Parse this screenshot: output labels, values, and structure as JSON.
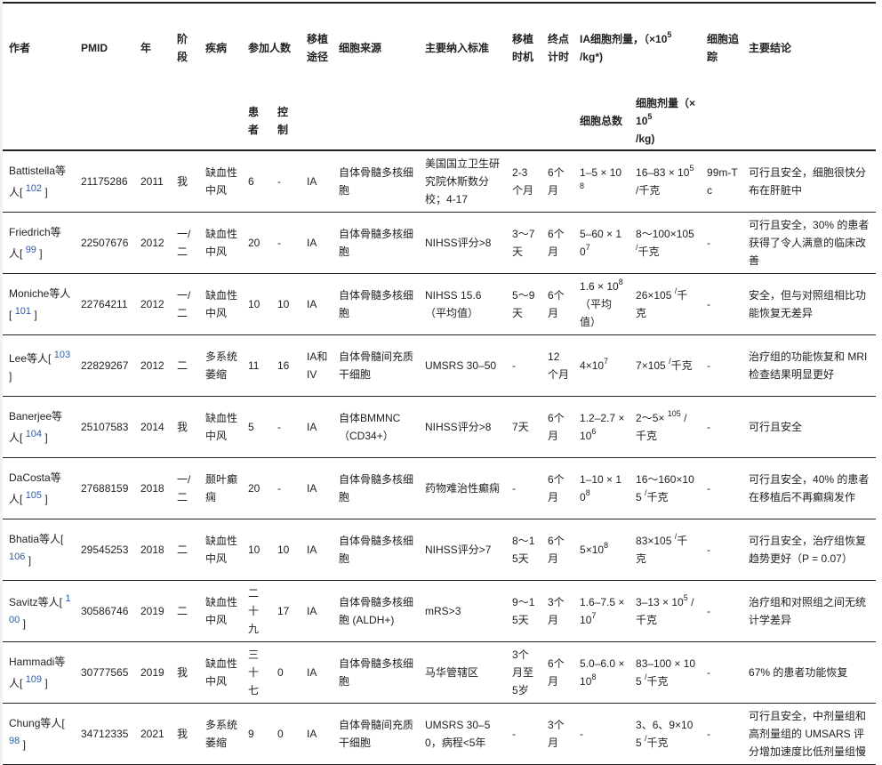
{
  "header": {
    "author": "作者",
    "pmid": "PMID",
    "year": "年",
    "phase": "阶段",
    "disease": "疾病",
    "enrolled": "参加人数",
    "patients": "患者",
    "control": "控制",
    "route": "移植途径",
    "cell_source": "细胞来源",
    "inclusion": "主要纳入标准",
    "timing": "移植时机",
    "endpoint": "终点计时",
    "ia_dose": "IA细胞剂量，（×10",
    "ia_dose_sup": "5",
    "ia_dose_after": "/kg*)",
    "total_cells": "细胞总数",
    "dose": "细胞剂量（×10",
    "dose_sup": "5",
    "dose_after": "/kg)",
    "tracking": "细胞追踪",
    "conclusion": "主要结论"
  },
  "colors": {
    "ref_link": "#2a5db0",
    "rule": "#222222"
  },
  "rows": [
    {
      "author": "Battistella等人[",
      "ref": "102",
      "pmid": "21175286",
      "year": "2011",
      "phase": "我",
      "disease": "缺血性中风",
      "patients": "6",
      "control": "-",
      "route": "IA",
      "source": "自体骨髓多核细胞",
      "inclusion": "美国国立卫生研究院休斯数分校；4-17",
      "timing": "2-3个月",
      "endpoint": "6个月",
      "total": {
        "base": "1–5 × 10",
        "sup": "8",
        "after": ""
      },
      "dose": {
        "base": "16–83 × 10",
        "sup": "5",
        "after": " /千克"
      },
      "tracking": "99m-Tc",
      "conclusion": "可行且安全，细胞很快分布在肝脏中"
    },
    {
      "author": "Friedrich等人[",
      "ref": "99",
      "pmid": "22507676",
      "year": "2012",
      "phase": "一/二",
      "disease": "缺血性中风",
      "patients": "20",
      "control": "-",
      "route": "IA",
      "source": "自体骨髓多核细胞",
      "inclusion": "NIHSS评分>8",
      "timing": "3～7天",
      "endpoint": "6个月",
      "total": {
        "base": "5–60 × 10",
        "sup": "7",
        "after": ""
      },
      "dose": {
        "base": "8～100×105 ",
        "sup": "/",
        "after": "千克"
      },
      "tracking": "-",
      "conclusion": "可行且安全，30% 的患者获得了令人满意的临床改善"
    },
    {
      "author": "Moniche等人[",
      "ref": "101",
      "pmid": "22764211",
      "year": "2012",
      "phase": "一/二",
      "disease": "缺血性中风",
      "patients": "10",
      "control": "10",
      "route": "IA",
      "source": "自体骨髓多核细胞",
      "inclusion": "NIHSS 15.6（平均值）",
      "timing": "5～9天",
      "endpoint": "6个月",
      "total": {
        "base": "1.6 × 10",
        "sup": "8",
        "after": "（平均值）"
      },
      "dose": {
        "base": "26×105 ",
        "sup": "/",
        "after": "千克"
      },
      "tracking": "-",
      "conclusion": "安全，但与对照组相比功能恢复无差异"
    },
    {
      "author": "Lee等人[",
      "ref": "103",
      "pmid": "22829267",
      "year": "2012",
      "phase": "二",
      "disease": "多系统萎缩",
      "patients": "11",
      "control": "16",
      "route": "IA和IV",
      "source": "自体骨髓间充质干细胞",
      "inclusion": "UMSRS 30–50",
      "timing": "-",
      "endpoint": "12个月",
      "total": {
        "base": "4×10",
        "sup": "7",
        "after": ""
      },
      "dose": {
        "base": "7×105 ",
        "sup": "/",
        "after": "千克"
      },
      "tracking": "-",
      "conclusion": "治疗组的功能恢复和 MRI 检查结果明显更好"
    },
    {
      "author": "Banerjee等人[",
      "ref": "104",
      "pmid": "25107583",
      "year": "2014",
      "phase": "我",
      "disease": "缺血性中风",
      "patients": "5",
      "control": "-",
      "route": "IA",
      "source": "自体BMMNC（CD34+）",
      "inclusion": "NIHSS评分>8",
      "timing": "7天",
      "endpoint": "6个月",
      "total": {
        "base": "1.2–2.7 × 10",
        "sup": "6",
        "after": ""
      },
      "dose": {
        "base": "2～5× ",
        "sup": "105",
        "after": " /千克"
      },
      "tracking": "-",
      "conclusion": "可行且安全"
    },
    {
      "author": "DaCosta等人[",
      "ref": "105",
      "pmid": "27688159",
      "year": "2018",
      "phase": "一/二",
      "disease": "颞叶癫痫",
      "patients": "20",
      "control": "-",
      "route": "IA",
      "source": "自体骨髓多核细胞",
      "inclusion": "药物难治性癫痫",
      "timing": "-",
      "endpoint": "6个月",
      "total": {
        "base": "1–10 × 10",
        "sup": "8",
        "after": ""
      },
      "dose": {
        "base": "16～160×105 ",
        "sup": "/",
        "after": "千克"
      },
      "tracking": "-",
      "conclusion": "可行且安全，40% 的患者在移植后不再癫痫发作"
    },
    {
      "author": "Bhatia等人[",
      "ref": "106",
      "pmid": "29545253",
      "year": "2018",
      "phase": "二",
      "disease": "缺血性中风",
      "patients": "10",
      "control": "10",
      "route": "IA",
      "source": "自体骨髓多核细胞",
      "inclusion": "NIHSS评分>7",
      "timing": "8～15天",
      "endpoint": "6个月",
      "total": {
        "base": "5×10",
        "sup": "8",
        "after": ""
      },
      "dose": {
        "base": "83×105 ",
        "sup": "/",
        "after": "千克"
      },
      "tracking": "-",
      "conclusion": "可行且安全，治疗组恢复趋势更好（P = 0.07）"
    },
    {
      "author": "Savitz等人[",
      "ref": "100",
      "pmid": "30586746",
      "year": "2019",
      "phase": "二",
      "disease": "缺血性中风",
      "patients": "二十九",
      "control": "17",
      "route": "IA",
      "source": "自体骨髓多核细胞 (ALDH+)",
      "inclusion": "mRS>3",
      "timing": "9～15天",
      "endpoint": "3个月",
      "total": {
        "base": "1.6–7.5 × 10",
        "sup": "7",
        "after": ""
      },
      "dose": {
        "base": "3–13 × 10",
        "sup": "5",
        "after": " /千克"
      },
      "tracking": "-",
      "conclusion": "治疗组和对照组之间无统计学差异"
    },
    {
      "author": "Hammadi等人[",
      "ref": "109",
      "pmid": "30777565",
      "year": "2019",
      "phase": "我",
      "disease": "缺血性中风",
      "patients": "三十七",
      "control": "0",
      "route": "IA",
      "source": "自体骨髓多核细胞",
      "inclusion": "马华管辖区",
      "timing": "3个月至5岁",
      "endpoint": "6个月",
      "total": {
        "base": "5.0–6.0 × 10",
        "sup": "8",
        "after": ""
      },
      "dose": {
        "base": "83–100 × 105 ",
        "sup": "/",
        "after": "千克"
      },
      "tracking": "-",
      "conclusion": "67% 的患者功能恢复"
    },
    {
      "author": "Chung等人[",
      "ref": "98",
      "pmid": "34712335",
      "year": "2021",
      "phase": "我",
      "disease": "多系统萎缩",
      "patients": "9",
      "control": "0",
      "route": "IA",
      "source": "自体骨髓间充质干细胞",
      "inclusion": "UMSRS 30–50，病程<5年",
      "timing": "-",
      "endpoint": "3个月",
      "total": {
        "base": "-",
        "sup": "",
        "after": ""
      },
      "dose": {
        "base": "3、6、9×105 ",
        "sup": "/",
        "after": "千克"
      },
      "tracking": "-",
      "conclusion": "可行且安全，中剂量组和高剂量组的 UMSARS 评分增加速度比低剂量组慢"
    }
  ]
}
